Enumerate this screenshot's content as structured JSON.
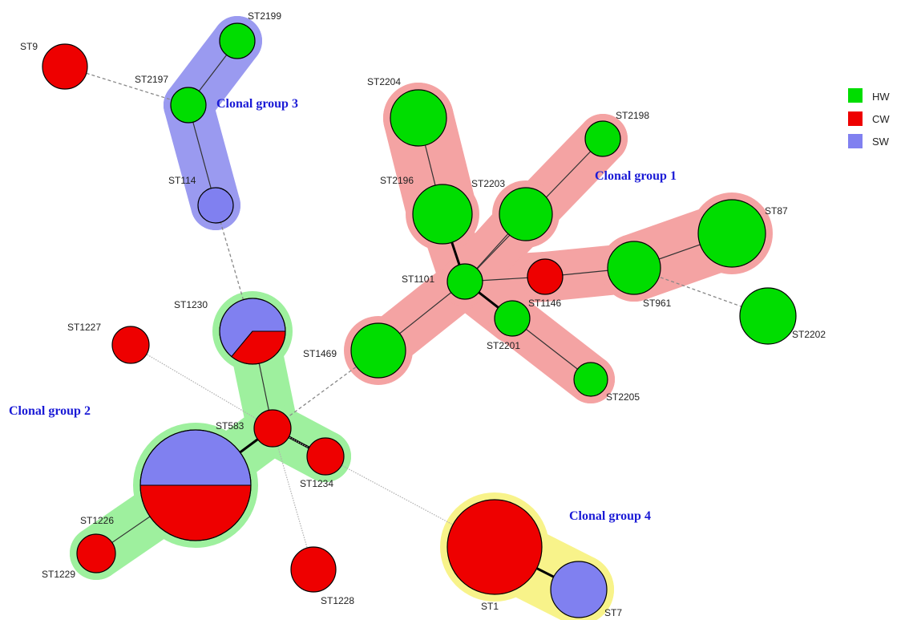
{
  "colors": {
    "HW": "#00dd00",
    "CW": "#ee0000",
    "SW": "#8080f0",
    "group_halo": {
      "1": "#f4a3a3",
      "2": "#9ef09e",
      "3": "#9a9af0",
      "4": "#f8f38a"
    }
  },
  "legend": [
    {
      "key": "HW",
      "label": "HW"
    },
    {
      "key": "CW",
      "label": "CW"
    },
    {
      "key": "SW",
      "label": "SW"
    }
  ],
  "groups": [
    {
      "id": "1",
      "label": "Clonal group 1"
    },
    {
      "id": "2",
      "label": "Clonal group 2"
    },
    {
      "id": "3",
      "label": "Clonal group 3"
    },
    {
      "id": "4",
      "label": "Clonal group 4"
    }
  ],
  "nodes": [
    {
      "id": "ST2199",
      "label": "ST2199",
      "group": "3",
      "composition": [
        {
          "source": "HW",
          "fraction": 1
        }
      ]
    },
    {
      "id": "ST9",
      "label": "ST9",
      "group": "",
      "composition": [
        {
          "source": "CW",
          "fraction": 1
        }
      ]
    },
    {
      "id": "ST2197",
      "label": "ST2197",
      "group": "3",
      "composition": [
        {
          "source": "HW",
          "fraction": 1
        }
      ]
    },
    {
      "id": "ST114",
      "label": "ST114",
      "group": "3",
      "composition": [
        {
          "source": "SW",
          "fraction": 1
        }
      ]
    },
    {
      "id": "ST2204",
      "label": "ST2204",
      "group": "1",
      "composition": [
        {
          "source": "HW",
          "fraction": 1
        }
      ]
    },
    {
      "id": "ST2198",
      "label": "ST2198",
      "group": "1",
      "composition": [
        {
          "source": "HW",
          "fraction": 1
        }
      ]
    },
    {
      "id": "ST2196",
      "label": "ST2196",
      "group": "1",
      "composition": [
        {
          "source": "HW",
          "fraction": 1
        }
      ]
    },
    {
      "id": "ST2203",
      "label": "ST2203",
      "group": "1",
      "composition": [
        {
          "source": "HW",
          "fraction": 1
        }
      ]
    },
    {
      "id": "ST87",
      "label": "ST87",
      "group": "1",
      "composition": [
        {
          "source": "HW",
          "fraction": 1
        }
      ]
    },
    {
      "id": "ST1101",
      "label": "ST1101",
      "group": "1",
      "composition": [
        {
          "source": "HW",
          "fraction": 1
        }
      ]
    },
    {
      "id": "ST1146",
      "label": "ST1146",
      "group": "1",
      "composition": [
        {
          "source": "CW",
          "fraction": 1
        }
      ]
    },
    {
      "id": "ST961",
      "label": "ST961",
      "group": "1",
      "composition": [
        {
          "source": "HW",
          "fraction": 1
        }
      ]
    },
    {
      "id": "ST2202",
      "label": "ST2202",
      "group": "",
      "composition": [
        {
          "source": "HW",
          "fraction": 1
        }
      ]
    },
    {
      "id": "ST2201",
      "label": "ST2201",
      "group": "1",
      "composition": [
        {
          "source": "HW",
          "fraction": 1
        }
      ]
    },
    {
      "id": "ST1469",
      "label": "ST1469",
      "group": "1",
      "composition": [
        {
          "source": "HW",
          "fraction": 1
        }
      ]
    },
    {
      "id": "ST2205",
      "label": "ST2205",
      "group": "1",
      "composition": [
        {
          "source": "HW",
          "fraction": 1
        }
      ]
    },
    {
      "id": "ST1230",
      "label": "ST1230",
      "group": "2",
      "composition": [
        {
          "source": "SW",
          "fraction": 0.64
        },
        {
          "source": "CW",
          "fraction": 0.36
        }
      ]
    },
    {
      "id": "ST1227",
      "label": "ST1227",
      "group": "",
      "composition": [
        {
          "source": "CW",
          "fraction": 1
        }
      ]
    },
    {
      "id": "ST583",
      "label": "ST583",
      "group": "2",
      "composition": [
        {
          "source": "CW",
          "fraction": 1
        }
      ]
    },
    {
      "id": "ST1234",
      "label": "ST1234",
      "group": "2",
      "composition": [
        {
          "source": "CW",
          "fraction": 1
        }
      ]
    },
    {
      "id": "ST1226",
      "label": "ST1226",
      "group": "2",
      "composition": [
        {
          "source": "SW",
          "fraction": 0.5
        },
        {
          "source": "CW",
          "fraction": 0.5
        }
      ]
    },
    {
      "id": "ST1229",
      "label": "ST1229",
      "group": "2",
      "composition": [
        {
          "source": "CW",
          "fraction": 1
        }
      ]
    },
    {
      "id": "ST1228",
      "label": "ST1228",
      "group": "",
      "composition": [
        {
          "source": "CW",
          "fraction": 1
        }
      ]
    },
    {
      "id": "ST1",
      "label": "ST1",
      "group": "4",
      "composition": [
        {
          "source": "CW",
          "fraction": 1
        }
      ]
    },
    {
      "id": "ST7",
      "label": "ST7",
      "group": "4",
      "composition": [
        {
          "source": "SW",
          "fraction": 1
        }
      ]
    }
  ],
  "edges": [
    {
      "from": "ST2199",
      "to": "ST2197",
      "style": "thin"
    },
    {
      "from": "ST2197",
      "to": "ST114",
      "style": "thin"
    },
    {
      "from": "ST9",
      "to": "ST2197",
      "style": "dashed"
    },
    {
      "from": "ST114",
      "to": "ST1230",
      "style": "dashed"
    },
    {
      "from": "ST2204",
      "to": "ST2196",
      "style": "thin"
    },
    {
      "from": "ST2196",
      "to": "ST1101",
      "style": "thick"
    },
    {
      "from": "ST2203",
      "to": "ST1101",
      "style": "thin"
    },
    {
      "from": "ST2198",
      "to": "ST1101",
      "style": "thin"
    },
    {
      "from": "ST1101",
      "to": "ST1146",
      "style": "thin"
    },
    {
      "from": "ST1146",
      "to": "ST961",
      "style": "thin"
    },
    {
      "from": "ST961",
      "to": "ST87",
      "style": "thin"
    },
    {
      "from": "ST961",
      "to": "ST2202",
      "style": "dashed"
    },
    {
      "from": "ST1101",
      "to": "ST2201",
      "style": "thick"
    },
    {
      "from": "ST2201",
      "to": "ST2205",
      "style": "thin"
    },
    {
      "from": "ST1101",
      "to": "ST1469",
      "style": "thin"
    },
    {
      "from": "ST1469",
      "to": "ST583",
      "style": "dashed"
    },
    {
      "from": "ST1230",
      "to": "ST583",
      "style": "thin"
    },
    {
      "from": "ST583",
      "to": "ST1234",
      "style": "thick"
    },
    {
      "from": "ST583",
      "to": "ST1226",
      "style": "thick"
    },
    {
      "from": "ST1226",
      "to": "ST1229",
      "style": "thin"
    },
    {
      "from": "ST1227",
      "to": "ST583",
      "style": "dotted"
    },
    {
      "from": "ST583",
      "to": "ST1228",
      "style": "dotted"
    },
    {
      "from": "ST583",
      "to": "ST1",
      "style": "dotted"
    },
    {
      "from": "ST1",
      "to": "ST7",
      "style": "thick"
    }
  ]
}
